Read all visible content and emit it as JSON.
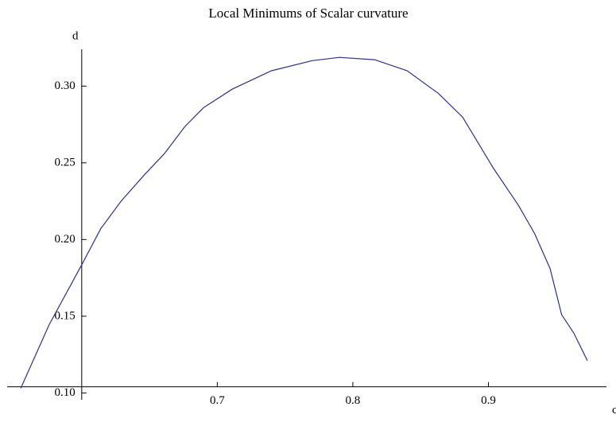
{
  "chart_data": {
    "type": "line",
    "title": "Local Minimums of Scalar curvature",
    "x_label": "c",
    "y_label": "d",
    "x": [
      0.555,
      0.576,
      0.6,
      0.614,
      0.629,
      0.646,
      0.661,
      0.676,
      0.69,
      0.711,
      0.74,
      0.77,
      0.79,
      0.816,
      0.84,
      0.863,
      0.881,
      0.904,
      0.922,
      0.934,
      0.9455,
      0.954,
      0.963,
      0.973
    ],
    "series": [
      {
        "name": "d",
        "color": "#2e2e8f",
        "values": [
          0.103,
          0.1445,
          0.1835,
          0.207,
          0.225,
          0.242,
          0.256,
          0.2735,
          0.286,
          0.298,
          0.31,
          0.3166,
          0.3187,
          0.3172,
          0.31,
          0.2953,
          0.2797,
          0.246,
          0.2225,
          0.204,
          0.181,
          0.151,
          0.139,
          0.121
        ]
      }
    ],
    "xlim": [
      0.545,
      0.99
    ],
    "ylim": [
      0.0955,
      0.324
    ],
    "axes_origin": [
      0.6,
      0.104
    ],
    "xticks": [
      0.7,
      0.8,
      0.9
    ],
    "yticks": [
      {
        "value": 0.1,
        "label": "0.10"
      },
      0.15,
      {
        "value": 0.2,
        "label": "0.20"
      },
      0.25,
      {
        "value": 0.3,
        "label": "0.30"
      }
    ]
  }
}
